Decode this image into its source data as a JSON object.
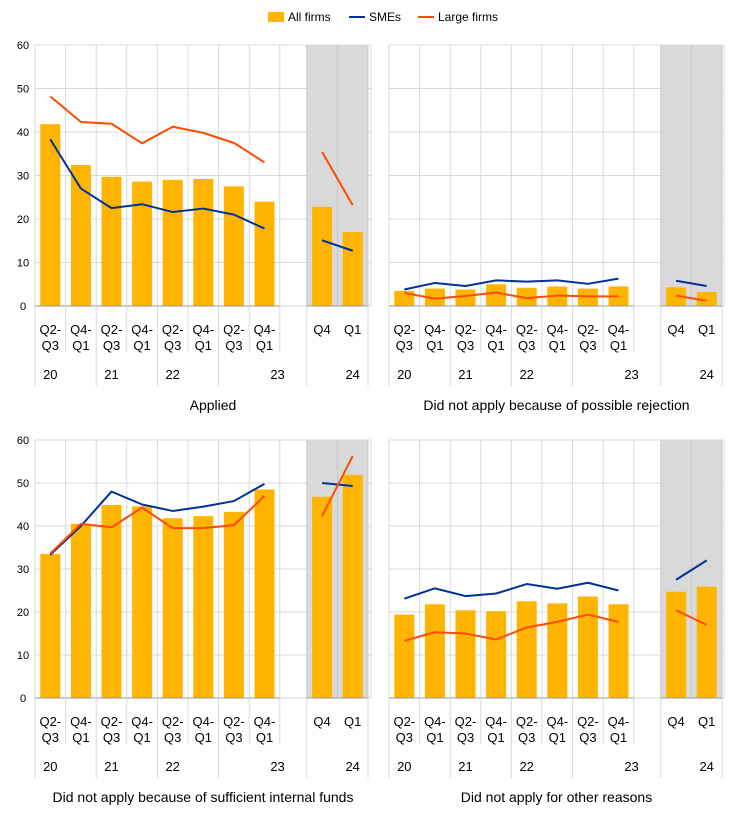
{
  "legend": [
    {
      "label": "All firms",
      "color": "#FFB400",
      "kind": "bar"
    },
    {
      "label": "SMEs",
      "color": "#003299",
      "kind": "line"
    },
    {
      "label": "Large firms",
      "color": "#FF4B00",
      "kind": "line"
    }
  ],
  "chart_data": [
    {
      "type": "bar+line",
      "title": "Applied",
      "ylim": [
        0,
        60
      ],
      "yticks": [
        0,
        10,
        20,
        30,
        40,
        50,
        60
      ],
      "categories": [
        "Q2-Q3",
        "Q4-Q1",
        "Q2-Q3",
        "Q4-Q1",
        "Q2-Q3",
        "Q4-Q1",
        "Q2-Q3",
        "Q4-Q1"
      ],
      "category_labels": [
        [
          "Q2-",
          "Q3"
        ],
        [
          "Q4-",
          "Q1"
        ],
        [
          "Q2-",
          "Q3"
        ],
        [
          "Q4-",
          "Q1"
        ],
        [
          "Q2-",
          "Q3"
        ],
        [
          "Q4-",
          "Q1"
        ],
        [
          "Q2-",
          "Q3"
        ],
        [
          "Q4-",
          "Q1"
        ]
      ],
      "year_labels": [
        "20",
        "21",
        "22",
        "23"
      ],
      "series": [
        {
          "name": "All firms",
          "values": [
            41.8,
            32.4,
            29.7,
            28.6,
            29.0,
            29.2,
            27.5,
            24.0
          ]
        },
        {
          "name": "SMEs",
          "values": [
            38.3,
            27.0,
            22.5,
            23.4,
            21.6,
            22.4,
            21.0,
            17.8
          ]
        },
        {
          "name": "Large firms",
          "values": [
            48.2,
            42.3,
            41.9,
            37.4,
            41.2,
            39.8,
            37.5,
            33.0
          ]
        }
      ],
      "recent": {
        "categories": [
          "Q4",
          "Q1"
        ],
        "year_label": "24",
        "series": [
          {
            "name": "All firms",
            "values": [
              22.8,
              17.0
            ]
          },
          {
            "name": "SMEs",
            "values": [
              15.1,
              12.7
            ]
          },
          {
            "name": "Large firms",
            "values": [
              35.4,
              23.2
            ]
          }
        ]
      }
    },
    {
      "type": "bar+line",
      "title": "Did not apply because of possible rejection",
      "ylim": [
        0,
        60
      ],
      "yticks": [
        0,
        10,
        20,
        30,
        40,
        50,
        60
      ],
      "categories": [
        "Q2-Q3",
        "Q4-Q1",
        "Q2-Q3",
        "Q4-Q1",
        "Q2-Q3",
        "Q4-Q1",
        "Q2-Q3",
        "Q4-Q1"
      ],
      "category_labels": [
        [
          "Q2-",
          "Q3"
        ],
        [
          "Q4-",
          "Q1"
        ],
        [
          "Q2-",
          "Q3"
        ],
        [
          "Q4-",
          "Q1"
        ],
        [
          "Q2-",
          "Q3"
        ],
        [
          "Q4-",
          "Q1"
        ],
        [
          "Q2-",
          "Q3"
        ],
        [
          "Q4-",
          "Q1"
        ]
      ],
      "year_labels": [
        "20",
        "21",
        "22",
        "23"
      ],
      "series": [
        {
          "name": "All firms",
          "values": [
            3.5,
            4.0,
            3.8,
            5.0,
            4.2,
            4.5,
            4.0,
            4.5
          ]
        },
        {
          "name": "SMEs",
          "values": [
            3.8,
            5.3,
            4.6,
            5.9,
            5.6,
            5.9,
            5.1,
            6.3
          ]
        },
        {
          "name": "Large firms",
          "values": [
            3.0,
            1.7,
            2.3,
            3.1,
            1.8,
            2.4,
            2.2,
            2.2
          ]
        }
      ],
      "recent": {
        "categories": [
          "Q4",
          "Q1"
        ],
        "year_label": "24",
        "series": [
          {
            "name": "All firms",
            "values": [
              4.3,
              3.2
            ]
          },
          {
            "name": "SMEs",
            "values": [
              5.8,
              4.6
            ]
          },
          {
            "name": "Large firms",
            "values": [
              2.4,
              1.2
            ]
          }
        ]
      }
    },
    {
      "type": "bar+line",
      "title": "Did not apply because of sufficient internal funds",
      "ylim": [
        0,
        60
      ],
      "yticks": [
        0,
        10,
        20,
        30,
        40,
        50,
        60
      ],
      "categories": [
        "Q2-Q3",
        "Q4-Q1",
        "Q2-Q3",
        "Q4-Q1",
        "Q2-Q3",
        "Q4-Q1",
        "Q2-Q3",
        "Q4-Q1"
      ],
      "category_labels": [
        [
          "Q2-",
          "Q3"
        ],
        [
          "Q4-",
          "Q1"
        ],
        [
          "Q2-",
          "Q3"
        ],
        [
          "Q4-",
          "Q1"
        ],
        [
          "Q2-",
          "Q3"
        ],
        [
          "Q4-",
          "Q1"
        ],
        [
          "Q2-",
          "Q3"
        ],
        [
          "Q4-",
          "Q1"
        ]
      ],
      "year_labels": [
        "20",
        "21",
        "22",
        "23"
      ],
      "series": [
        {
          "name": "All firms",
          "values": [
            33.5,
            40.5,
            44.9,
            44.6,
            41.8,
            42.3,
            43.3,
            48.5
          ]
        },
        {
          "name": "SMEs",
          "values": [
            33.3,
            40.0,
            48.0,
            45.0,
            43.5,
            44.5,
            45.8,
            49.8
          ]
        },
        {
          "name": "Large firms",
          "values": [
            33.6,
            40.5,
            39.7,
            44.3,
            39.5,
            39.5,
            40.2,
            47.0
          ]
        }
      ],
      "recent": {
        "categories": [
          "Q4",
          "Q1"
        ],
        "year_label": "24",
        "series": [
          {
            "name": "All firms",
            "values": [
              46.8,
              51.9
            ]
          },
          {
            "name": "SMEs",
            "values": [
              50.0,
              49.3
            ]
          },
          {
            "name": "Large firms",
            "values": [
              42.3,
              56.3
            ]
          }
        ]
      }
    },
    {
      "type": "bar+line",
      "title": "Did not apply for other reasons",
      "ylim": [
        0,
        60
      ],
      "yticks": [
        0,
        10,
        20,
        30,
        40,
        50,
        60
      ],
      "categories": [
        "Q2-Q3",
        "Q4-Q1",
        "Q2-Q3",
        "Q4-Q1",
        "Q2-Q3",
        "Q4-Q1",
        "Q2-Q3",
        "Q4-Q1"
      ],
      "category_labels": [
        [
          "Q2-",
          "Q3"
        ],
        [
          "Q4-",
          "Q1"
        ],
        [
          "Q2-",
          "Q3"
        ],
        [
          "Q4-",
          "Q1"
        ],
        [
          "Q2-",
          "Q3"
        ],
        [
          "Q4-",
          "Q1"
        ],
        [
          "Q2-",
          "Q3"
        ],
        [
          "Q4-",
          "Q1"
        ]
      ],
      "year_labels": [
        "20",
        "21",
        "22",
        "23"
      ],
      "series": [
        {
          "name": "All firms",
          "values": [
            19.4,
            21.8,
            20.4,
            20.2,
            22.5,
            22.0,
            23.6,
            21.8
          ]
        },
        {
          "name": "SMEs",
          "values": [
            23.1,
            25.5,
            23.7,
            24.3,
            26.5,
            25.4,
            26.8,
            25.0
          ]
        },
        {
          "name": "Large firms",
          "values": [
            13.3,
            15.3,
            15.0,
            13.6,
            16.4,
            17.7,
            19.4,
            17.7
          ]
        }
      ],
      "recent": {
        "categories": [
          "Q4",
          "Q1"
        ],
        "year_label": "24",
        "series": [
          {
            "name": "All firms",
            "values": [
              24.7,
              25.9
            ]
          },
          {
            "name": "SMEs",
            "values": [
              27.5,
              32.0
            ]
          },
          {
            "name": "Large firms",
            "values": [
              20.4,
              17.0
            ]
          }
        ]
      }
    }
  ]
}
